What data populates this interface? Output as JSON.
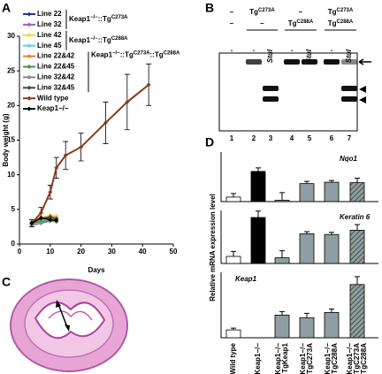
{
  "panel_labels": [
    "A",
    "B",
    "C",
    "D"
  ],
  "chart_data": [
    {
      "type": "line",
      "xlabel": "Days",
      "ylabel": "Body weight (g)",
      "xlim": [
        0,
        50
      ],
      "xticks": [
        0,
        10,
        20,
        30,
        40,
        50
      ],
      "ylim": [
        0,
        30
      ],
      "yticks": [
        0,
        5,
        10,
        15,
        20,
        25,
        30
      ],
      "legend_groups": [
        [
          "Keap1",
          "−/−",
          "::Tg",
          "C273A"
        ],
        [
          "Keap1",
          "−/−",
          "::Tg",
          "C288A"
        ],
        [
          "Keap1",
          "−/−",
          "::Tg",
          "C273A",
          "::Tg",
          "C288A"
        ]
      ],
      "series": [
        {
          "name": "Line 22",
          "color": "#1f3a93",
          "x": [
            4,
            7,
            10,
            12
          ],
          "values": [
            3.0,
            3.5,
            3.8,
            3.6
          ]
        },
        {
          "name": "Line 32",
          "color": "#a05cc8",
          "x": [
            4,
            7,
            10,
            12
          ],
          "values": [
            2.8,
            3.4,
            3.9,
            3.7
          ]
        },
        {
          "name": "Line 42",
          "color": "#e6df3c",
          "x": [
            4,
            7,
            10,
            12
          ],
          "values": [
            3.2,
            3.8,
            4.2,
            4.0
          ]
        },
        {
          "name": "Line 45",
          "color": "#5fd3e0",
          "x": [
            4,
            7,
            10,
            12
          ],
          "values": [
            2.9,
            3.3,
            3.6,
            3.5
          ]
        },
        {
          "name": "Line 22&42",
          "color": "#f07f2a",
          "x": [
            4,
            7,
            10,
            12
          ],
          "values": [
            3.1,
            3.6,
            4.0,
            3.8
          ]
        },
        {
          "name": "Line 22&45",
          "color": "#3a9b3a",
          "x": [
            4,
            7,
            10,
            12
          ],
          "values": [
            3.0,
            3.2,
            3.4,
            3.3
          ]
        },
        {
          "name": "Line 32&42",
          "color": "#888888",
          "x": [
            4,
            7,
            10,
            12
          ],
          "values": [
            2.7,
            3.0,
            3.3,
            3.2
          ]
        },
        {
          "name": "Line 32&45",
          "color": "#2f4f2f",
          "x": [
            4,
            7,
            10,
            12
          ],
          "values": [
            3.1,
            3.7,
            3.9,
            3.6
          ]
        },
        {
          "name": "Wild type",
          "color": "#8b3a1a",
          "x": [
            4,
            7,
            10,
            12,
            15,
            20,
            28,
            35,
            42
          ],
          "values": [
            3.0,
            4.5,
            7.5,
            11,
            12.8,
            14,
            17.5,
            20.5,
            23
          ],
          "errors": [
            0.5,
            0.8,
            1,
            1.5,
            2,
            2,
            3,
            4,
            3
          ]
        },
        {
          "name": "Keap1−/−",
          "color": "#000000",
          "x": [
            4,
            7,
            10,
            12
          ],
          "values": [
            3.0,
            3.8,
            3.5,
            3.4
          ]
        }
      ]
    },
    {
      "type": "bar",
      "ylabel": "Relative mRNA expression level",
      "categories": [
        [
          "Wild type"
        ],
        [
          "Keap1−/−"
        ],
        [
          "Keap1−/−",
          "TgKeap1"
        ],
        [
          "Keap1−/−",
          "TgC273A"
        ],
        [
          "Keap1−/−",
          "TgC288A"
        ],
        [
          "Keap1−/−",
          "TgC273A",
          "TgC288A"
        ]
      ],
      "colors": [
        "#ffffff",
        "#000000",
        "#8f9ea0",
        "#8f9ea0",
        "#8f9ea0",
        "#8f9ea0"
      ],
      "hatch": [
        false,
        false,
        false,
        false,
        false,
        true
      ],
      "panels": [
        {
          "title": "Nqo1",
          "ylim": [
            0,
            11
          ],
          "values": [
            1.0,
            6.7,
            0.3,
            4.0,
            4.3,
            4.2
          ],
          "errors": [
            0.8,
            0.8,
            1.7,
            0.5,
            0.4,
            1.0
          ]
        },
        {
          "title": "Keratin 6",
          "ylim": [
            0,
            7.5
          ],
          "values": [
            1.0,
            6.5,
            0.8,
            4.2,
            4.1,
            4.7
          ],
          "errors": [
            0.7,
            0.9,
            1.0,
            0.3,
            0.3,
            0.8
          ]
        },
        {
          "title": "Keap1",
          "ylim": [
            0,
            7.5
          ],
          "values": [
            0.9,
            0,
            2.6,
            2.3,
            2.9,
            6.1
          ],
          "errors": [
            0.2,
            null,
            0.4,
            0.5,
            0.4,
            0.9
          ]
        }
      ]
    }
  ],
  "gel": {
    "headers": [
      [
        [
          "–"
        ],
        [
          "–"
        ]
      ],
      [
        [
          "Tg",
          "C273A"
        ],
        [
          "–"
        ]
      ],
      [
        [
          "–"
        ],
        [
          "Tg",
          "C288A"
        ]
      ],
      [
        [
          "Tg",
          "C273A"
        ],
        [
          "Tg",
          "C288A"
        ]
      ]
    ],
    "enzymes": [
      "-",
      "-",
      "StuI",
      "-",
      "StuI",
      "-",
      "StuI"
    ],
    "lanes": [
      "1",
      "2",
      "3",
      "4",
      "5",
      "6",
      "7"
    ]
  }
}
